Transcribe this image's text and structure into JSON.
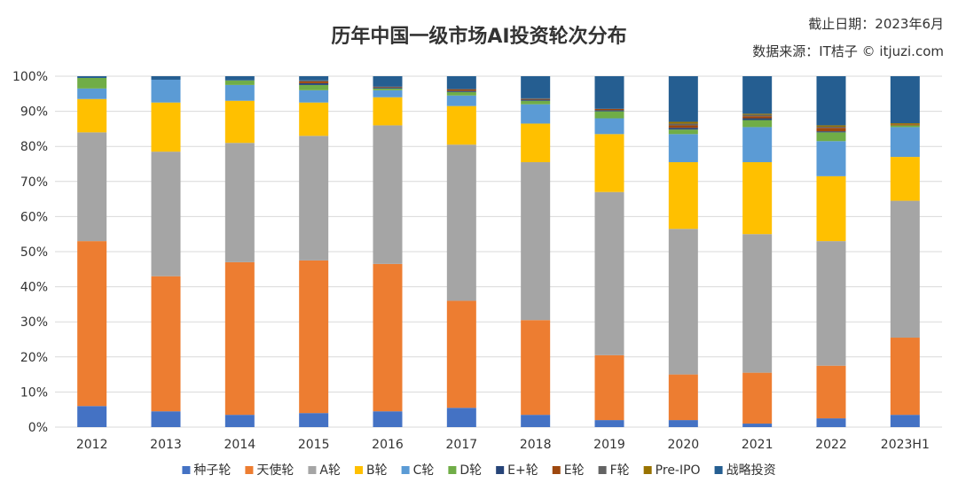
{
  "chart_data": {
    "type": "bar",
    "stacked": true,
    "title": "历年中国一级市场AI投资轮次分布",
    "cutoff": "截止日期：2023年6月",
    "source": "数据来源：IT桔子 © itjuzi.com",
    "categories": [
      "2012",
      "2013",
      "2014",
      "2015",
      "2016",
      "2017",
      "2018",
      "2019",
      "2020",
      "2021",
      "2022",
      "2023H1"
    ],
    "ylim": [
      0,
      100
    ],
    "yticks": [
      "0%",
      "10%",
      "20%",
      "30%",
      "40%",
      "50%",
      "60%",
      "70%",
      "80%",
      "90%",
      "100%"
    ],
    "grid": true,
    "legend_position": "bottom",
    "series": [
      {
        "name": "种子轮",
        "color": "#4472C4",
        "values": [
          6,
          4.5,
          3.5,
          4,
          4.5,
          5.5,
          3.5,
          2,
          2,
          1,
          2.5,
          3.5
        ]
      },
      {
        "name": "天使轮",
        "color": "#ED7D31",
        "values": [
          47,
          38.5,
          43.5,
          43.5,
          42,
          30.5,
          27,
          18.5,
          13,
          14.5,
          15,
          22
        ]
      },
      {
        "name": "A轮",
        "color": "#A5A5A5",
        "values": [
          31,
          35.5,
          34,
          35.5,
          39.5,
          44.5,
          45,
          46.5,
          41.5,
          39.5,
          35.5,
          39
        ]
      },
      {
        "name": "B轮",
        "color": "#FFC000",
        "values": [
          9.5,
          14,
          12,
          9.5,
          8,
          11,
          11,
          16.5,
          19,
          20.5,
          18.5,
          12.5
        ]
      },
      {
        "name": "C轮",
        "color": "#5B9BD5",
        "values": [
          3,
          6.5,
          4.5,
          3.5,
          2,
          3,
          5.5,
          4.5,
          8,
          10,
          10,
          8.5
        ]
      },
      {
        "name": "D轮",
        "color": "#70AD47",
        "values": [
          3,
          0,
          1.3,
          1.5,
          0.5,
          1,
          1,
          2,
          1.3,
          2,
          2.5,
          0.5
        ]
      },
      {
        "name": "E+轮",
        "color": "#264478",
        "values": [
          0,
          0,
          0,
          0.5,
          0.3,
          0.3,
          0.3,
          0.3,
          0.5,
          0.5,
          0.3,
          0
        ]
      },
      {
        "name": "E轮",
        "color": "#9E480E",
        "values": [
          0,
          0,
          0,
          0.5,
          0.2,
          0.5,
          0.2,
          0.4,
          0.7,
          0.6,
          1,
          0.3
        ]
      },
      {
        "name": "F轮",
        "color": "#636363",
        "values": [
          0,
          0,
          0,
          0.3,
          0,
          0,
          0.2,
          0,
          0.5,
          0.4,
          0.3,
          0
        ]
      },
      {
        "name": "Pre-IPO",
        "color": "#997300",
        "values": [
          0,
          0,
          0,
          0,
          0,
          0,
          0,
          0,
          0.5,
          0.3,
          0.4,
          0.3
        ]
      },
      {
        "name": "战略投资",
        "color": "#255E91",
        "values": [
          0.5,
          1,
          1.2,
          1.2,
          3,
          3.7,
          6.3,
          9.3,
          13,
          10.7,
          14,
          13.4
        ]
      }
    ]
  }
}
